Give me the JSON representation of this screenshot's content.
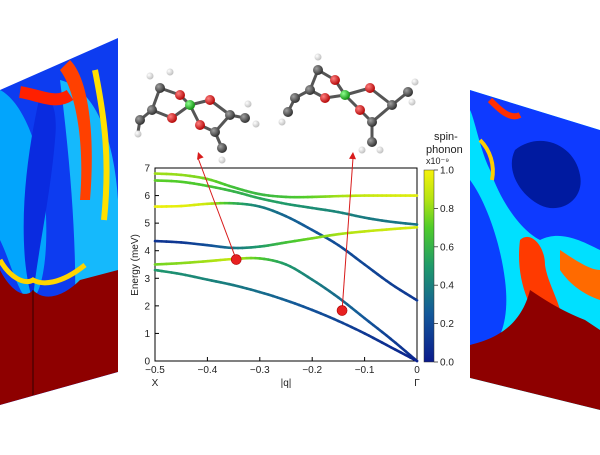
{
  "chart_data": {
    "type": "line",
    "xlabel": "|q|",
    "ylabel": "Energy (meV)",
    "xlim": [
      -0.5,
      0
    ],
    "ylim": [
      0,
      7
    ],
    "x_ticks": [
      "−0.5",
      "−0.4",
      "−0.3",
      "−0.2",
      "−0.1",
      "0"
    ],
    "y_ticks": [
      "0",
      "1",
      "2",
      "3",
      "4",
      "5",
      "6",
      "7"
    ],
    "x_endpoint_labels": {
      "left": "X",
      "right": "Γ"
    },
    "colorbar": {
      "title_line1": "spin-",
      "title_line2": "phonon",
      "scale_label": "x10⁻⁹",
      "ticks": [
        "0.0",
        "0.2",
        "0.4",
        "0.6",
        "0.8",
        "1.0"
      ],
      "range": [
        0,
        1
      ]
    },
    "series": [
      {
        "x": [
          -0.5,
          -0.45,
          -0.4,
          -0.35,
          -0.3,
          -0.25,
          -0.2,
          -0.15,
          -0.1,
          -0.05,
          0
        ],
        "values": [
          6.8,
          6.75,
          6.6,
          6.3,
          6.05,
          5.95,
          5.95,
          5.98,
          6.0,
          6.0,
          6.0
        ],
        "coupling": [
          0.82,
          0.8,
          0.75,
          0.65,
          0.62,
          0.65,
          0.72,
          0.82,
          0.88,
          0.92,
          0.95
        ]
      },
      {
        "x": [
          -0.5,
          -0.45,
          -0.4,
          -0.35,
          -0.3,
          -0.25,
          -0.2,
          -0.15,
          -0.1,
          -0.05,
          0
        ],
        "values": [
          6.55,
          6.5,
          6.35,
          6.15,
          5.9,
          5.7,
          5.55,
          5.4,
          5.2,
          5.05,
          4.95
        ],
        "coupling": [
          0.72,
          0.7,
          0.68,
          0.6,
          0.55,
          0.5,
          0.45,
          0.42,
          0.38,
          0.36,
          0.35
        ]
      },
      {
        "x": [
          -0.5,
          -0.45,
          -0.4,
          -0.35,
          -0.3,
          -0.25,
          -0.2,
          -0.15,
          -0.1,
          -0.05,
          0
        ],
        "values": [
          5.6,
          5.62,
          5.7,
          5.72,
          5.6,
          5.25,
          4.75,
          4.2,
          3.5,
          2.8,
          2.2
        ],
        "coupling": [
          0.98,
          0.96,
          0.9,
          0.6,
          0.4,
          0.3,
          0.25,
          0.2,
          0.18,
          0.15,
          0.12
        ]
      },
      {
        "x": [
          -0.5,
          -0.45,
          -0.4,
          -0.35,
          -0.3,
          -0.25,
          -0.2,
          -0.15,
          -0.1,
          -0.05,
          0
        ],
        "values": [
          4.35,
          4.3,
          4.2,
          4.1,
          4.15,
          4.3,
          4.45,
          4.6,
          4.7,
          4.78,
          4.85
        ],
        "coupling": [
          0.1,
          0.12,
          0.2,
          0.35,
          0.5,
          0.65,
          0.75,
          0.82,
          0.87,
          0.9,
          0.92
        ]
      },
      {
        "x": [
          -0.5,
          -0.45,
          -0.4,
          -0.35,
          -0.3,
          -0.25,
          -0.2,
          -0.15,
          -0.1,
          -0.05,
          0
        ],
        "values": [
          3.5,
          3.55,
          3.62,
          3.7,
          3.72,
          3.5,
          2.95,
          2.3,
          1.55,
          0.8,
          0.0
        ],
        "coupling": [
          0.75,
          0.78,
          0.82,
          0.88,
          0.7,
          0.5,
          0.4,
          0.32,
          0.25,
          0.15,
          0.05
        ]
      },
      {
        "x": [
          -0.5,
          -0.45,
          -0.4,
          -0.35,
          -0.3,
          -0.25,
          -0.2,
          -0.15,
          -0.1,
          -0.05,
          0
        ],
        "values": [
          3.3,
          3.15,
          2.95,
          2.75,
          2.5,
          2.2,
          1.85,
          1.45,
          1.0,
          0.5,
          0.0
        ],
        "coupling": [
          0.5,
          0.45,
          0.42,
          0.38,
          0.33,
          0.28,
          0.22,
          0.18,
          0.12,
          0.08,
          0.03
        ]
      }
    ],
    "highlighted_points": [
      {
        "x": -0.345,
        "y": 3.68
      },
      {
        "x": -0.143,
        "y": 1.83
      }
    ]
  }
}
